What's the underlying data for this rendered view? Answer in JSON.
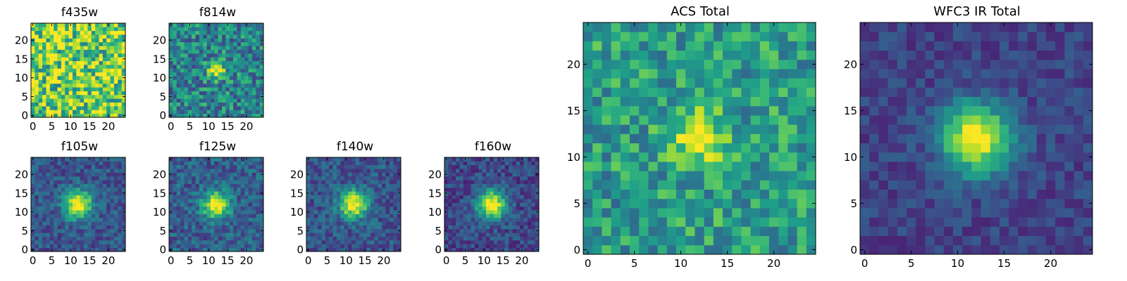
{
  "figure": {
    "colormap": "viridis",
    "colormap_stops": [
      "#440154",
      "#482878",
      "#3e4989",
      "#31688e",
      "#26828e",
      "#1f9e89",
      "#35b779",
      "#6ece58",
      "#b5de2b",
      "#fde725"
    ]
  },
  "chart_data": [
    {
      "type": "heatmap",
      "title": "f435w",
      "xlabel": "",
      "ylabel": "",
      "grid": false,
      "image_size": [
        25,
        25
      ],
      "xlim": [
        -0.5,
        24.5
      ],
      "ylim": [
        -0.5,
        24.5
      ],
      "xticks": [
        "0",
        "5",
        "10",
        "15",
        "20"
      ],
      "yticks": [
        "0",
        "5",
        "10",
        "15",
        "20"
      ],
      "source_present": false,
      "peak_center": [
        12,
        12
      ],
      "peak_width": 2.5,
      "background_level": 0.78,
      "noise_level": 0.35,
      "seed": 11
    },
    {
      "type": "heatmap",
      "title": "f814w",
      "xlabel": "",
      "ylabel": "",
      "grid": false,
      "image_size": [
        25,
        25
      ],
      "xlim": [
        -0.5,
        24.5
      ],
      "ylim": [
        -0.5,
        24.5
      ],
      "xticks": [
        "0",
        "5",
        "10",
        "15",
        "20"
      ],
      "yticks": [
        "0",
        "5",
        "10",
        "15",
        "20"
      ],
      "source_present": true,
      "peak_center": [
        12,
        12
      ],
      "peak_width": 1.6,
      "background_level": 0.45,
      "noise_level": 0.25,
      "seed": 23
    },
    {
      "type": "heatmap",
      "title": "f105w",
      "xlabel": "",
      "ylabel": "",
      "grid": false,
      "image_size": [
        25,
        25
      ],
      "xlim": [
        -0.5,
        24.5
      ],
      "ylim": [
        -0.5,
        24.5
      ],
      "xticks": [
        "0",
        "5",
        "10",
        "15",
        "20"
      ],
      "yticks": [
        "0",
        "5",
        "10",
        "15",
        "20"
      ],
      "source_present": true,
      "peak_center": [
        12,
        12
      ],
      "peak_width": 2.6,
      "background_level": 0.27,
      "noise_level": 0.14,
      "seed": 37
    },
    {
      "type": "heatmap",
      "title": "f125w",
      "xlabel": "",
      "ylabel": "",
      "grid": false,
      "image_size": [
        25,
        25
      ],
      "xlim": [
        -0.5,
        24.5
      ],
      "ylim": [
        -0.5,
        24.5
      ],
      "xticks": [
        "0",
        "5",
        "10",
        "15",
        "20"
      ],
      "yticks": [
        "0",
        "5",
        "10",
        "15",
        "20"
      ],
      "source_present": true,
      "peak_center": [
        12,
        12
      ],
      "peak_width": 2.5,
      "background_level": 0.3,
      "noise_level": 0.16,
      "seed": 41
    },
    {
      "type": "heatmap",
      "title": "f140w",
      "xlabel": "",
      "ylabel": "",
      "grid": false,
      "image_size": [
        25,
        25
      ],
      "xlim": [
        -0.5,
        24.5
      ],
      "ylim": [
        -0.5,
        24.5
      ],
      "xticks": [
        "0",
        "5",
        "10",
        "15",
        "20"
      ],
      "yticks": [
        "0",
        "5",
        "10",
        "15",
        "20"
      ],
      "source_present": true,
      "peak_center": [
        12,
        12
      ],
      "peak_width": 2.6,
      "background_level": 0.27,
      "noise_level": 0.15,
      "seed": 53
    },
    {
      "type": "heatmap",
      "title": "f160w",
      "xlabel": "",
      "ylabel": "",
      "grid": false,
      "image_size": [
        25,
        25
      ],
      "xlim": [
        -0.5,
        24.5
      ],
      "ylim": [
        -0.5,
        24.5
      ],
      "xticks": [
        "0",
        "5",
        "10",
        "15",
        "20"
      ],
      "yticks": [
        "0",
        "5",
        "10",
        "15",
        "20"
      ],
      "source_present": true,
      "peak_center": [
        12,
        12
      ],
      "peak_width": 2.7,
      "background_level": 0.22,
      "noise_level": 0.14,
      "seed": 67
    },
    {
      "type": "heatmap",
      "title": "ACS Total",
      "xlabel": "",
      "ylabel": "",
      "grid": false,
      "image_size": [
        25,
        25
      ],
      "xlim": [
        -0.5,
        24.5
      ],
      "ylim": [
        -0.5,
        24.5
      ],
      "xticks": [
        "0",
        "5",
        "10",
        "15",
        "20"
      ],
      "yticks": [
        "0",
        "5",
        "10",
        "15",
        "20"
      ],
      "source_present": true,
      "peak_center": [
        12,
        12
      ],
      "peak_width": 2.0,
      "background_level": 0.55,
      "noise_level": 0.22,
      "seed": 79
    },
    {
      "type": "heatmap",
      "title": "WFC3 IR Total",
      "xlabel": "",
      "ylabel": "",
      "grid": false,
      "image_size": [
        25,
        25
      ],
      "xlim": [
        -0.5,
        24.5
      ],
      "ylim": [
        -0.5,
        24.5
      ],
      "xticks": [
        "0",
        "5",
        "10",
        "15",
        "20"
      ],
      "yticks": [
        "0",
        "5",
        "10",
        "15",
        "20"
      ],
      "source_present": true,
      "peak_center": [
        12,
        12
      ],
      "peak_width": 2.6,
      "background_level": 0.2,
      "noise_level": 0.1,
      "seed": 97
    }
  ]
}
